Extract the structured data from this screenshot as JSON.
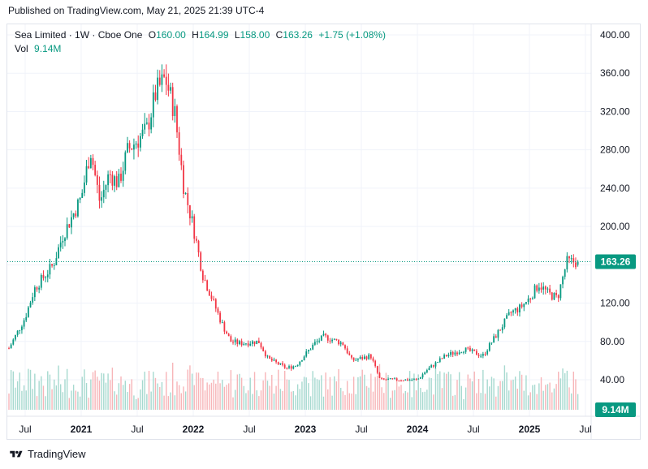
{
  "published": "Published on TradingView.com, May 21, 2025 21:39 UTC-4",
  "legend": {
    "title": "Sea Limited · 1W · Cboe One",
    "open_label": "O",
    "open": "160.00",
    "high_label": "H",
    "high": "164.99",
    "low_label": "L",
    "low": "158.00",
    "close_label": "C",
    "close": "163.26",
    "change": "+1.75 (+1.08%)",
    "vol_label": "Vol",
    "vol": "9.14M"
  },
  "footer": {
    "brand": "TradingView",
    "logo_icon": "tradingview-logo-icon"
  },
  "colors": {
    "up": "#089981",
    "down": "#f23645",
    "up_vol": "#a6d9cf",
    "down_vol": "#f7b5b8",
    "grid": "#f0f3fa",
    "last_price": "#089981"
  },
  "chart_data": {
    "type": "candlestick",
    "title": "Sea Limited · 1W · Cboe One",
    "price_axis": {
      "ticks": [
        40,
        80,
        120,
        160,
        200,
        240,
        280,
        320,
        360,
        400
      ],
      "tick_labels": [
        "40.00",
        "80.00",
        "120.00",
        "160.00",
        "200.00",
        "240.00",
        "280.00",
        "320.00",
        "360.00",
        "400.00"
      ],
      "ylim": [
        5,
        415
      ]
    },
    "time_axis": {
      "labels": [
        "Jul",
        "2021",
        "Jul",
        "2022",
        "Jul",
        "2023",
        "Jul",
        "2024",
        "Jul",
        "2025",
        "Jul"
      ]
    },
    "last_price": 163.26,
    "last_price_label": "163.26",
    "volume_label": "9.14M",
    "grid": true,
    "approx_weekly_close_path": [
      [
        "2020-05",
        68
      ],
      [
        "2020-07",
        105
      ],
      [
        "2020-08",
        135
      ],
      [
        "2020-10",
        160
      ],
      [
        "2020-11",
        190
      ],
      [
        "2021-01",
        230
      ],
      [
        "2021-02",
        280
      ],
      [
        "2021-03",
        225
      ],
      [
        "2021-04",
        255
      ],
      [
        "2021-05",
        245
      ],
      [
        "2021-06",
        280
      ],
      [
        "2021-08",
        300
      ],
      [
        "2021-09",
        340
      ],
      [
        "2021-10",
        355
      ],
      [
        "2021-11",
        320
      ],
      [
        "2021-12",
        240
      ],
      [
        "2022-01",
        200
      ],
      [
        "2022-02",
        150
      ],
      [
        "2022-03",
        125
      ],
      [
        "2022-04",
        100
      ],
      [
        "2022-05",
        80
      ],
      [
        "2022-06",
        78
      ],
      [
        "2022-08",
        80
      ],
      [
        "2022-09",
        62
      ],
      [
        "2022-11",
        52
      ],
      [
        "2022-12",
        55
      ],
      [
        "2023-02",
        78
      ],
      [
        "2023-03",
        85
      ],
      [
        "2023-05",
        78
      ],
      [
        "2023-06",
        60
      ],
      [
        "2023-08",
        65
      ],
      [
        "2023-09",
        40
      ],
      [
        "2023-11",
        40
      ],
      [
        "2024-01",
        40
      ],
      [
        "2024-02",
        50
      ],
      [
        "2024-04",
        65
      ],
      [
        "2024-06",
        72
      ],
      [
        "2024-08",
        65
      ],
      [
        "2024-09",
        80
      ],
      [
        "2024-10",
        95
      ],
      [
        "2024-11",
        110
      ],
      [
        "2024-12",
        115
      ],
      [
        "2025-01",
        125
      ],
      [
        "2025-02",
        140
      ],
      [
        "2025-03",
        130
      ],
      [
        "2025-04",
        125
      ],
      [
        "2025-05",
        163
      ]
    ]
  }
}
